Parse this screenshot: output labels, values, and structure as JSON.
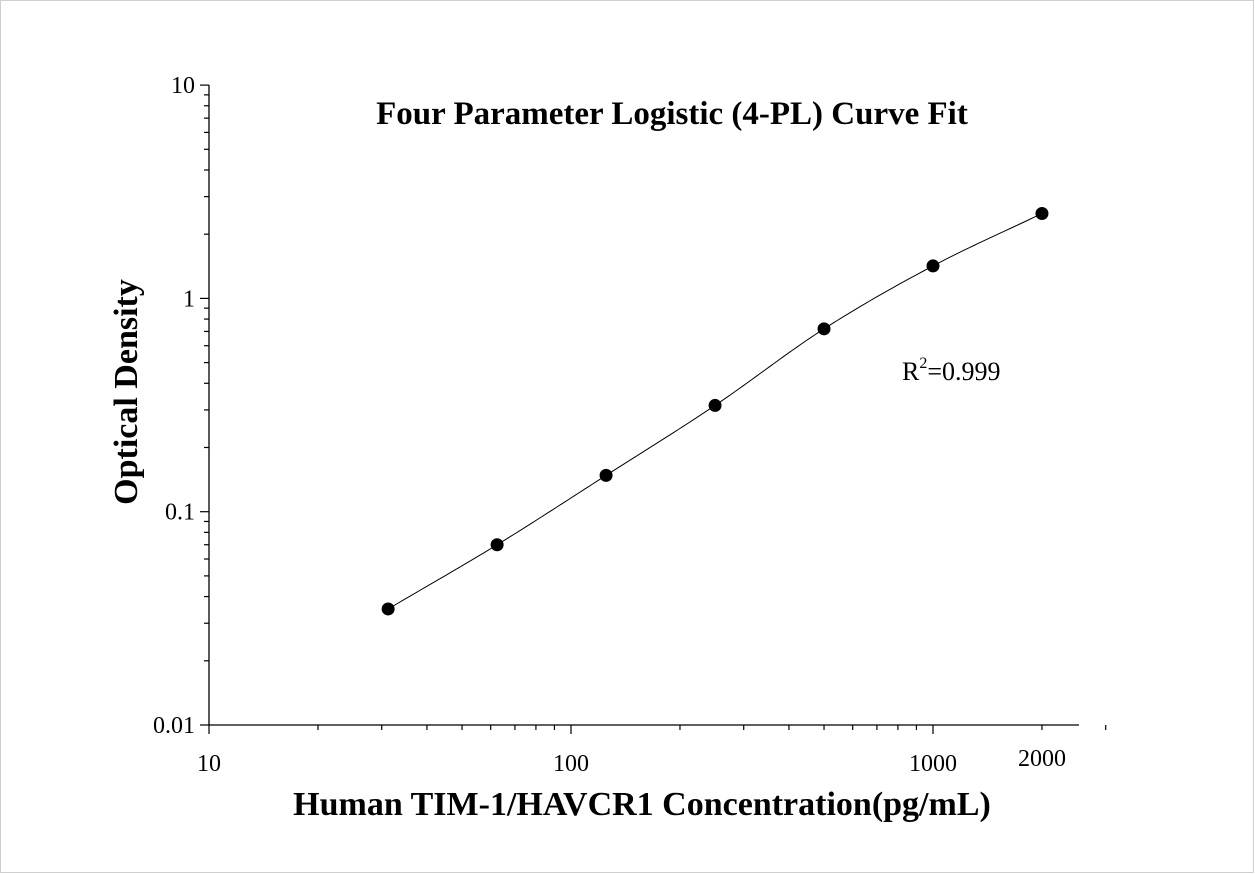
{
  "chart_data": {
    "type": "scatter",
    "title": "Four Parameter Logistic (4-PL) Curve Fit",
    "xlabel": "Human TIM-1/HAVCR1 Concentration(pg/mL)",
    "ylabel": "Optical Density",
    "x_scale": "log",
    "y_scale": "log",
    "xlim": [
      10,
      3000
    ],
    "ylim": [
      0.01,
      10
    ],
    "x_ticks": [
      {
        "value": 10,
        "label": "10"
      },
      {
        "value": 100,
        "label": "100"
      },
      {
        "value": 1000,
        "label": "1000"
      },
      {
        "value": 2000,
        "label": "2000"
      }
    ],
    "y_ticks": [
      {
        "value": 0.01,
        "label": "0.01"
      },
      {
        "value": 0.1,
        "label": "0.1"
      },
      {
        "value": 1,
        "label": "1"
      },
      {
        "value": 10,
        "label": "10"
      }
    ],
    "grid": false,
    "series": [
      {
        "x": [
          31.25,
          62.5,
          125,
          250,
          500,
          1000,
          2000
        ],
        "y": [
          0.035,
          0.07,
          0.148,
          0.315,
          0.72,
          1.42,
          2.5
        ]
      }
    ],
    "annotations": [
      {
        "base": "R",
        "superscript": "2",
        "rest": "=0.999"
      }
    ]
  }
}
